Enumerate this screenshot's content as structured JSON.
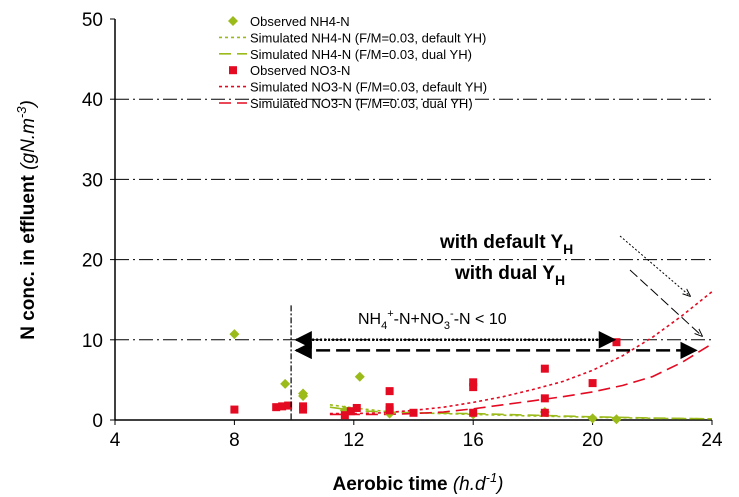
{
  "chart_data": {
    "type": "scatter",
    "xlabel": "Aerobic time",
    "xlabel_unit": "(h.d",
    "xlabel_unit_sup": "-1",
    "xlabel_unit_end": ")",
    "ylabel": "N conc. in effluent",
    "ylabel_unit": "(gN.m",
    "ylabel_unit_sup": "-3",
    "ylabel_unit_end": ")",
    "xlim": [
      4,
      24
    ],
    "ylim": [
      0,
      50
    ],
    "xticks": [
      4,
      8,
      12,
      16,
      20,
      24
    ],
    "yticks": [
      0,
      10,
      20,
      30,
      40,
      50
    ],
    "gridlines_y": [
      10,
      20,
      30,
      40
    ],
    "legend_position": "top-left",
    "series": [
      {
        "name": "Observed NH4-N",
        "kind": "points",
        "marker": "diamond",
        "color": "#9bbb1a",
        "points": [
          [
            8,
            10.7
          ],
          [
            9.7,
            4.5
          ],
          [
            10.3,
            3.3
          ],
          [
            10.3,
            3.0
          ],
          [
            11.7,
            1.2
          ],
          [
            12.2,
            5.4
          ],
          [
            13.2,
            0.8
          ],
          [
            16,
            0.7
          ],
          [
            18.4,
            1.0
          ],
          [
            20,
            0.2
          ],
          [
            20.8,
            0.1
          ]
        ]
      },
      {
        "name": "Simulated NH4-N (F/M=0.03, default YH)",
        "kind": "line",
        "style": "dotted",
        "color": "#9bbb1a",
        "points": [
          [
            11.2,
            1.9
          ],
          [
            12,
            1.5
          ],
          [
            13,
            1.1
          ],
          [
            14,
            0.9
          ],
          [
            16,
            0.7
          ],
          [
            18,
            0.5
          ],
          [
            20,
            0.35
          ],
          [
            22,
            0.2
          ],
          [
            24,
            0.15
          ]
        ]
      },
      {
        "name": "Simulated NH4-N (F/M=0.03, dual YH)",
        "kind": "line",
        "style": "dashed",
        "color": "#9bbb1a",
        "points": [
          [
            11.2,
            1.6
          ],
          [
            12,
            1.2
          ],
          [
            13,
            1.0
          ],
          [
            14,
            0.9
          ],
          [
            16,
            0.8
          ],
          [
            18,
            0.6
          ],
          [
            20,
            0.4
          ],
          [
            22,
            0.25
          ],
          [
            24,
            0.15
          ]
        ]
      },
      {
        "name": "Observed NO3-N",
        "kind": "points",
        "marker": "square",
        "color": "#e30a22",
        "points": [
          [
            8,
            1.3
          ],
          [
            9.4,
            1.6
          ],
          [
            9.6,
            1.7
          ],
          [
            9.8,
            1.8
          ],
          [
            10.3,
            1.3
          ],
          [
            10.3,
            1.7
          ],
          [
            11.7,
            0.6
          ],
          [
            11.9,
            1.1
          ],
          [
            12.1,
            1.5
          ],
          [
            13.2,
            3.6
          ],
          [
            13.2,
            1.6
          ],
          [
            13.2,
            1.2
          ],
          [
            14,
            0.9
          ],
          [
            16,
            4.7
          ],
          [
            16,
            4.1
          ],
          [
            16,
            0.9
          ],
          [
            18.4,
            6.4
          ],
          [
            18.4,
            2.7
          ],
          [
            18.4,
            0.9
          ],
          [
            20,
            4.6
          ],
          [
            20.8,
            9.7
          ]
        ]
      },
      {
        "name": "Simulated NO3-N (F/M=0.03, default YH)",
        "kind": "line",
        "style": "dotted",
        "color": "#e30a22",
        "points": [
          [
            11.2,
            0.8
          ],
          [
            12,
            0.8
          ],
          [
            13,
            0.9
          ],
          [
            14,
            1.2
          ],
          [
            15,
            1.6
          ],
          [
            16,
            2.2
          ],
          [
            17,
            2.9
          ],
          [
            18,
            3.8
          ],
          [
            19,
            4.8
          ],
          [
            20,
            6.2
          ],
          [
            21,
            8.0
          ],
          [
            22,
            10.3
          ],
          [
            23,
            13.0
          ],
          [
            24,
            16.0
          ]
        ]
      },
      {
        "name": "Simulated NO3-N (F/M=0.03, dual YH)",
        "kind": "line",
        "style": "dashed",
        "color": "#e30a22",
        "points": [
          [
            11.2,
            0.7
          ],
          [
            12,
            0.7
          ],
          [
            13,
            0.7
          ],
          [
            14,
            0.8
          ],
          [
            15,
            1.0
          ],
          [
            16,
            1.4
          ],
          [
            17,
            1.9
          ],
          [
            18,
            2.4
          ],
          [
            19,
            2.9
          ],
          [
            20,
            3.5
          ],
          [
            21,
            4.3
          ],
          [
            22,
            5.4
          ],
          [
            23,
            7.2
          ],
          [
            24,
            9.5
          ]
        ]
      }
    ],
    "annotations": {
      "range_label_a": "NH",
      "range_label_a_sup": "4",
      "range_label_a_supsign": "+",
      "range_label_b": "-N+NO",
      "range_label_b_sub": "3",
      "range_label_b_supsign": "-",
      "range_label_c": "-N < 10",
      "default_label": "with default Y",
      "default_label_sub": "H",
      "dual_label": "with dual Y",
      "dual_label_sub": "H",
      "range_default": [
        10,
        20.8,
        10.0
      ],
      "range_dual": [
        10,
        24,
        9.3
      ],
      "range_default_y": 10.0,
      "range_dual_y": 9.3,
      "vline_x": 10,
      "vline_top": 14.3
    }
  }
}
